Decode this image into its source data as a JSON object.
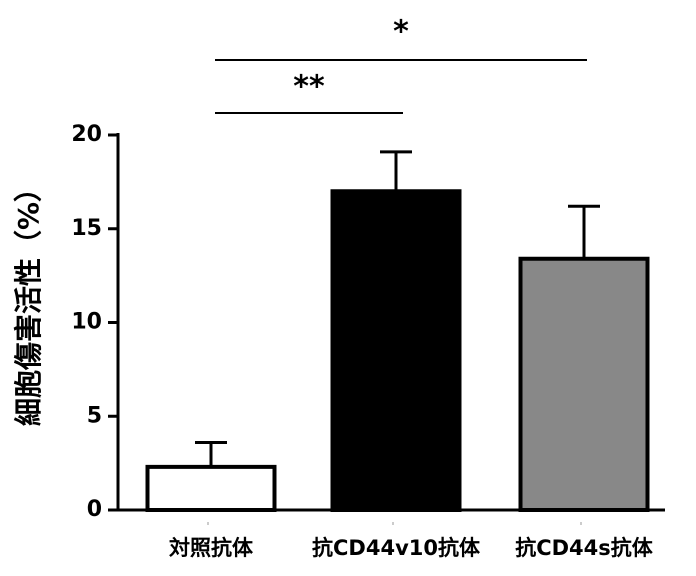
{
  "chart_data": {
    "type": "bar",
    "y_label": "細胞傷害活性（%）",
    "categories": [
      "対照抗体",
      "抗CD44v10抗体",
      "抗CD44s抗体"
    ],
    "values": [
      2.3,
      17.0,
      13.4
    ],
    "errors": [
      1.3,
      2.1,
      2.8
    ],
    "colors": [
      "#ffffff",
      "#000000",
      "#888888"
    ],
    "ylim": [
      0,
      20
    ],
    "yticks": [
      0,
      5,
      10,
      15,
      20
    ],
    "annotations": [
      "**",
      "*"
    ]
  }
}
